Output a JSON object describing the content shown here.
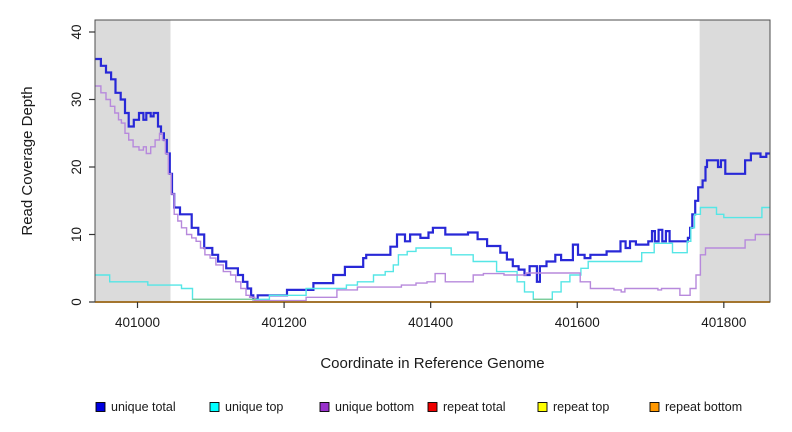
{
  "chart_data": {
    "type": "line",
    "subtype": "step-coverage-plot",
    "title": "",
    "xlabel": "Coordinate in Reference Genome",
    "ylabel": "Read Coverage Depth",
    "xlim": [
      400942,
      401863
    ],
    "ylim": [
      0,
      40
    ],
    "x_ticks": [
      401000,
      401200,
      401400,
      401600,
      401800
    ],
    "y_ticks": [
      0,
      10,
      20,
      30,
      40
    ],
    "grid": false,
    "legend_position": "bottom",
    "shaded_regions": [
      {
        "from": 400942,
        "to": 401045,
        "color": "#dbdbdb"
      },
      {
        "from": 401767,
        "to": 401863,
        "color": "#dbdbdb"
      }
    ],
    "series": [
      {
        "name": "unique total",
        "line_color": "#2828d7",
        "legend_color": "#0000e0",
        "line_width": 2.2,
        "points": [
          [
            400942,
            36
          ],
          [
            400950,
            35
          ],
          [
            400957,
            34
          ],
          [
            400964,
            33
          ],
          [
            400970,
            31
          ],
          [
            400977,
            30
          ],
          [
            400983,
            28
          ],
          [
            400988,
            26
          ],
          [
            400995,
            27
          ],
          [
            401002,
            28
          ],
          [
            401008,
            27
          ],
          [
            401012,
            28
          ],
          [
            401018,
            27.5
          ],
          [
            401022,
            28
          ],
          [
            401028,
            26
          ],
          [
            401032,
            25
          ],
          [
            401036,
            24
          ],
          [
            401040,
            22
          ],
          [
            401044,
            19
          ],
          [
            401047,
            16
          ],
          [
            401050,
            14
          ],
          [
            401058,
            13
          ],
          [
            401074,
            11
          ],
          [
            401083,
            10
          ],
          [
            401091,
            8
          ],
          [
            401102,
            7
          ],
          [
            401110,
            6
          ],
          [
            401121,
            5
          ],
          [
            401137,
            4
          ],
          [
            401144,
            3
          ],
          [
            401150,
            2
          ],
          [
            401155,
            1
          ],
          [
            401158,
            0.4
          ],
          [
            401164,
            1
          ],
          [
            401204,
            1.8
          ],
          [
            401240,
            2.8
          ],
          [
            401267,
            4
          ],
          [
            401283,
            5.2
          ],
          [
            401308,
            6.5
          ],
          [
            401312,
            7
          ],
          [
            401345,
            8.2
          ],
          [
            401354,
            10
          ],
          [
            401365,
            9
          ],
          [
            401372,
            10
          ],
          [
            401386,
            9.5
          ],
          [
            401397,
            10.3
          ],
          [
            401403,
            11
          ],
          [
            401420,
            10
          ],
          [
            401435,
            10
          ],
          [
            401451,
            10.3
          ],
          [
            401464,
            9.3
          ],
          [
            401477,
            8.3
          ],
          [
            401495,
            7.3
          ],
          [
            401504,
            6.3
          ],
          [
            401512,
            5.3
          ],
          [
            401520,
            4.8
          ],
          [
            401528,
            4
          ],
          [
            401535,
            5.3
          ],
          [
            401545,
            3
          ],
          [
            401549,
            5.3
          ],
          [
            401558,
            6
          ],
          [
            401570,
            7
          ],
          [
            401578,
            6.2
          ],
          [
            401594,
            8.5
          ],
          [
            401601,
            7
          ],
          [
            401610,
            6.5
          ],
          [
            401618,
            7
          ],
          [
            401640,
            7.5
          ],
          [
            401659,
            9
          ],
          [
            401666,
            8
          ],
          [
            401672,
            9
          ],
          [
            401680,
            8.5
          ],
          [
            401697,
            9
          ],
          [
            401702,
            10.5
          ],
          [
            401706,
            9
          ],
          [
            401711,
            10.7
          ],
          [
            401716,
            9
          ],
          [
            401721,
            10.5
          ],
          [
            401726,
            9
          ],
          [
            401751,
            9.5
          ],
          [
            401754,
            11
          ],
          [
            401757,
            13
          ],
          [
            401761,
            15
          ],
          [
            401765,
            17
          ],
          [
            401771,
            18
          ],
          [
            401775,
            20
          ],
          [
            401777,
            21
          ],
          [
            401792,
            20
          ],
          [
            401796,
            21
          ],
          [
            401802,
            19
          ],
          [
            401829,
            21
          ],
          [
            401837,
            22
          ],
          [
            401850,
            21.5
          ],
          [
            401858,
            22
          ]
        ]
      },
      {
        "name": "unique top",
        "line_color": "#55e6e6",
        "legend_color": "#00ffff",
        "line_width": 1.4,
        "points": [
          [
            400942,
            4
          ],
          [
            400962,
            3
          ],
          [
            401014,
            2.5
          ],
          [
            401060,
            2
          ],
          [
            401075,
            0.4
          ],
          [
            401180,
            1
          ],
          [
            401230,
            2
          ],
          [
            401285,
            2.5
          ],
          [
            401300,
            3
          ],
          [
            401322,
            4
          ],
          [
            401338,
            4.5
          ],
          [
            401349,
            5.5
          ],
          [
            401356,
            7
          ],
          [
            401368,
            7.5
          ],
          [
            401380,
            8
          ],
          [
            401428,
            7
          ],
          [
            401458,
            6
          ],
          [
            401490,
            4.5
          ],
          [
            401518,
            3
          ],
          [
            401528,
            1.5
          ],
          [
            401540,
            0.4
          ],
          [
            401566,
            1.5
          ],
          [
            401578,
            3
          ],
          [
            401590,
            4
          ],
          [
            401605,
            5
          ],
          [
            401615,
            6
          ],
          [
            401688,
            7.3
          ],
          [
            401705,
            8.7
          ],
          [
            401730,
            7.3
          ],
          [
            401750,
            9
          ],
          [
            401755,
            11
          ],
          [
            401760,
            13
          ],
          [
            401768,
            14
          ],
          [
            401790,
            13
          ],
          [
            401800,
            12.5
          ],
          [
            401848,
            12.5
          ],
          [
            401852,
            14
          ]
        ]
      },
      {
        "name": "unique bottom",
        "line_color": "#b789dc",
        "legend_color": "#9932cc",
        "line_width": 1.4,
        "points": [
          [
            400942,
            32
          ],
          [
            400950,
            31
          ],
          [
            400957,
            30
          ],
          [
            400963,
            29
          ],
          [
            400969,
            28
          ],
          [
            400974,
            27
          ],
          [
            400978,
            26.5
          ],
          [
            400983,
            25
          ],
          [
            400988,
            24
          ],
          [
            400994,
            23
          ],
          [
            401002,
            22.5
          ],
          [
            401008,
            23
          ],
          [
            401012,
            22
          ],
          [
            401018,
            23
          ],
          [
            401024,
            24
          ],
          [
            401030,
            25
          ],
          [
            401034,
            24
          ],
          [
            401038,
            22
          ],
          [
            401042,
            19
          ],
          [
            401046,
            16
          ],
          [
            401050,
            13
          ],
          [
            401055,
            12
          ],
          [
            401060,
            11
          ],
          [
            401067,
            10
          ],
          [
            401074,
            9.5
          ],
          [
            401080,
            9
          ],
          [
            401086,
            8
          ],
          [
            401092,
            7
          ],
          [
            401099,
            6.5
          ],
          [
            401107,
            5.5
          ],
          [
            401117,
            4.5
          ],
          [
            401127,
            4
          ],
          [
            401134,
            3
          ],
          [
            401141,
            2
          ],
          [
            401148,
            1
          ],
          [
            401153,
            0.7
          ],
          [
            401160,
            0.2
          ],
          [
            401230,
            0.7
          ],
          [
            401272,
            1.8
          ],
          [
            401300,
            2.2
          ],
          [
            401360,
            2.5
          ],
          [
            401380,
            2.8
          ],
          [
            401395,
            3
          ],
          [
            401406,
            4.2
          ],
          [
            401420,
            3
          ],
          [
            401458,
            4
          ],
          [
            401472,
            4.2
          ],
          [
            401500,
            4
          ],
          [
            401530,
            4.3
          ],
          [
            401604,
            3
          ],
          [
            401618,
            2
          ],
          [
            401650,
            1.8
          ],
          [
            401660,
            1.5
          ],
          [
            401665,
            2
          ],
          [
            401710,
            1.8
          ],
          [
            401715,
            2
          ],
          [
            401740,
            1
          ],
          [
            401754,
            2
          ],
          [
            401762,
            4
          ],
          [
            401768,
            7
          ],
          [
            401775,
            8
          ],
          [
            401829,
            9.2
          ],
          [
            401843,
            10
          ]
        ]
      },
      {
        "name": "repeat total",
        "line_color": "#e02020",
        "legend_color": "#ee0000",
        "line_width": 1.4,
        "points": [
          [
            400942,
            0
          ]
        ]
      },
      {
        "name": "repeat top",
        "line_color": "#f0f000",
        "legend_color": "#ffff00",
        "line_width": 1.4,
        "points": [
          [
            400942,
            0
          ]
        ]
      },
      {
        "name": "repeat bottom",
        "line_color": "#ff9500",
        "legend_color": "#ff9800",
        "line_width": 1.8,
        "points": [
          [
            400942,
            0
          ]
        ]
      }
    ],
    "blend_segments": [
      {
        "from": 401075,
        "to": 401162,
        "depth": 0.4,
        "color": "#7fcc99"
      },
      {
        "from": 401540,
        "to": 401566,
        "depth": 0.4,
        "color": "#7fcc99"
      }
    ],
    "legend": {
      "items": [
        "unique total",
        "unique top",
        "unique bottom",
        "repeat total",
        "repeat top",
        "repeat bottom"
      ]
    }
  }
}
